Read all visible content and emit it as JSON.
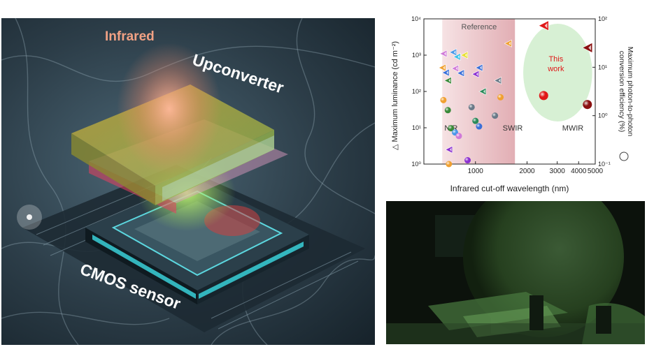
{
  "illustration": {
    "labels": {
      "infrared": "Infrared",
      "upconverter": "Upconverter",
      "cmos": "CMOS sensor"
    }
  },
  "chart_data": {
    "type": "scatter",
    "xlabel": "Infrared cut-off wavelength (nm)",
    "ylabel_left": "Maximum luminance (cd m⁻²)",
    "ylabel_right": "Maximum photon-to-photon conversion efficiency (%)",
    "x_scale": "log",
    "y_scale": "log",
    "xlim": [
      500,
      5000
    ],
    "ylim_left": [
      1,
      10000
    ],
    "ylim_right": [
      0.1,
      100
    ],
    "x_ticks": [
      1000,
      2000,
      3000,
      4000,
      5000
    ],
    "x_tick_labels": [
      "1000",
      "2000",
      "3000",
      "4000",
      "5000"
    ],
    "y_left_ticks": [
      1,
      10,
      100,
      1000,
      10000
    ],
    "y_left_tick_labels": [
      "10⁰",
      "10¹",
      "10²",
      "10³",
      "10⁴"
    ],
    "y_right_ticks": [
      0.1,
      1,
      10,
      100
    ],
    "y_right_tick_labels": [
      "10⁻¹",
      "10⁰",
      "10¹",
      "10²"
    ],
    "annotations": {
      "reference": "Reference",
      "this_work": [
        "This",
        "work"
      ],
      "nir": "NIR",
      "swir": "SWIR",
      "mwir": "MWIR"
    },
    "regions": [
      {
        "label": "Reference",
        "x": [
          640,
          1700
        ],
        "color": "#e8b8bc"
      },
      {
        "label": "This work",
        "x": [
          1900,
          4800
        ],
        "color": "#d7f0d4"
      }
    ],
    "series": [
      {
        "kind": "triangle",
        "axis": "left",
        "points": [
          {
            "x": 640,
            "y": 450,
            "color": "#f0a030"
          },
          {
            "x": 650,
            "y": 1100,
            "color": "#d07ad8"
          },
          {
            "x": 670,
            "y": 330,
            "color": "#3a6fd8"
          },
          {
            "x": 690,
            "y": 200,
            "color": "#3a8a3a"
          },
          {
            "x": 700,
            "y": 2.5,
            "color": "#8a2fd0"
          },
          {
            "x": 740,
            "y": 1200,
            "color": "#4a98e8"
          },
          {
            "x": 760,
            "y": 430,
            "color": "#d07ad8"
          },
          {
            "x": 780,
            "y": 900,
            "color": "#3ac0e8"
          },
          {
            "x": 820,
            "y": 320,
            "color": "#3a6fd8"
          },
          {
            "x": 860,
            "y": 1000,
            "color": "#e8e030"
          },
          {
            "x": 1000,
            "y": 300,
            "color": "#8a2fd0"
          },
          {
            "x": 1050,
            "y": 450,
            "color": "#3a6fd8"
          },
          {
            "x": 1100,
            "y": 100,
            "color": "#2a8a5a"
          },
          {
            "x": 1350,
            "y": 200,
            "color": "#6a7a88"
          },
          {
            "x": 1550,
            "y": 2100,
            "color": "#f0a030"
          },
          {
            "x": 2500,
            "y": 6500,
            "color": "#e01818"
          },
          {
            "x": 4500,
            "y": 1600,
            "color": "#8a1010"
          }
        ]
      },
      {
        "kind": "circle",
        "axis": "right",
        "points": [
          {
            "x": 650,
            "y": 2.1,
            "color": "#f0a030"
          },
          {
            "x": 690,
            "y": 1.3,
            "color": "#3a8a3a"
          },
          {
            "x": 700,
            "y": 0.1,
            "color": "#f0a030"
          },
          {
            "x": 720,
            "y": 0.55,
            "color": "#3a8a3a"
          },
          {
            "x": 760,
            "y": 0.45,
            "color": "#4a98e8"
          },
          {
            "x": 800,
            "y": 0.38,
            "color": "#d07ad8"
          },
          {
            "x": 900,
            "y": 0.12,
            "color": "#8a2fd0"
          },
          {
            "x": 950,
            "y": 1.5,
            "color": "#6a7a88"
          },
          {
            "x": 1000,
            "y": 0.78,
            "color": "#2a8a5a"
          },
          {
            "x": 1050,
            "y": 0.6,
            "color": "#3a6fd8"
          },
          {
            "x": 1300,
            "y": 1.0,
            "color": "#6a7a88"
          },
          {
            "x": 1400,
            "y": 2.4,
            "color": "#f0a030"
          },
          {
            "x": 2500,
            "y": 2.6,
            "color": "#e01818"
          },
          {
            "x": 4500,
            "y": 1.7,
            "color": "#8a1010"
          }
        ]
      }
    ]
  }
}
